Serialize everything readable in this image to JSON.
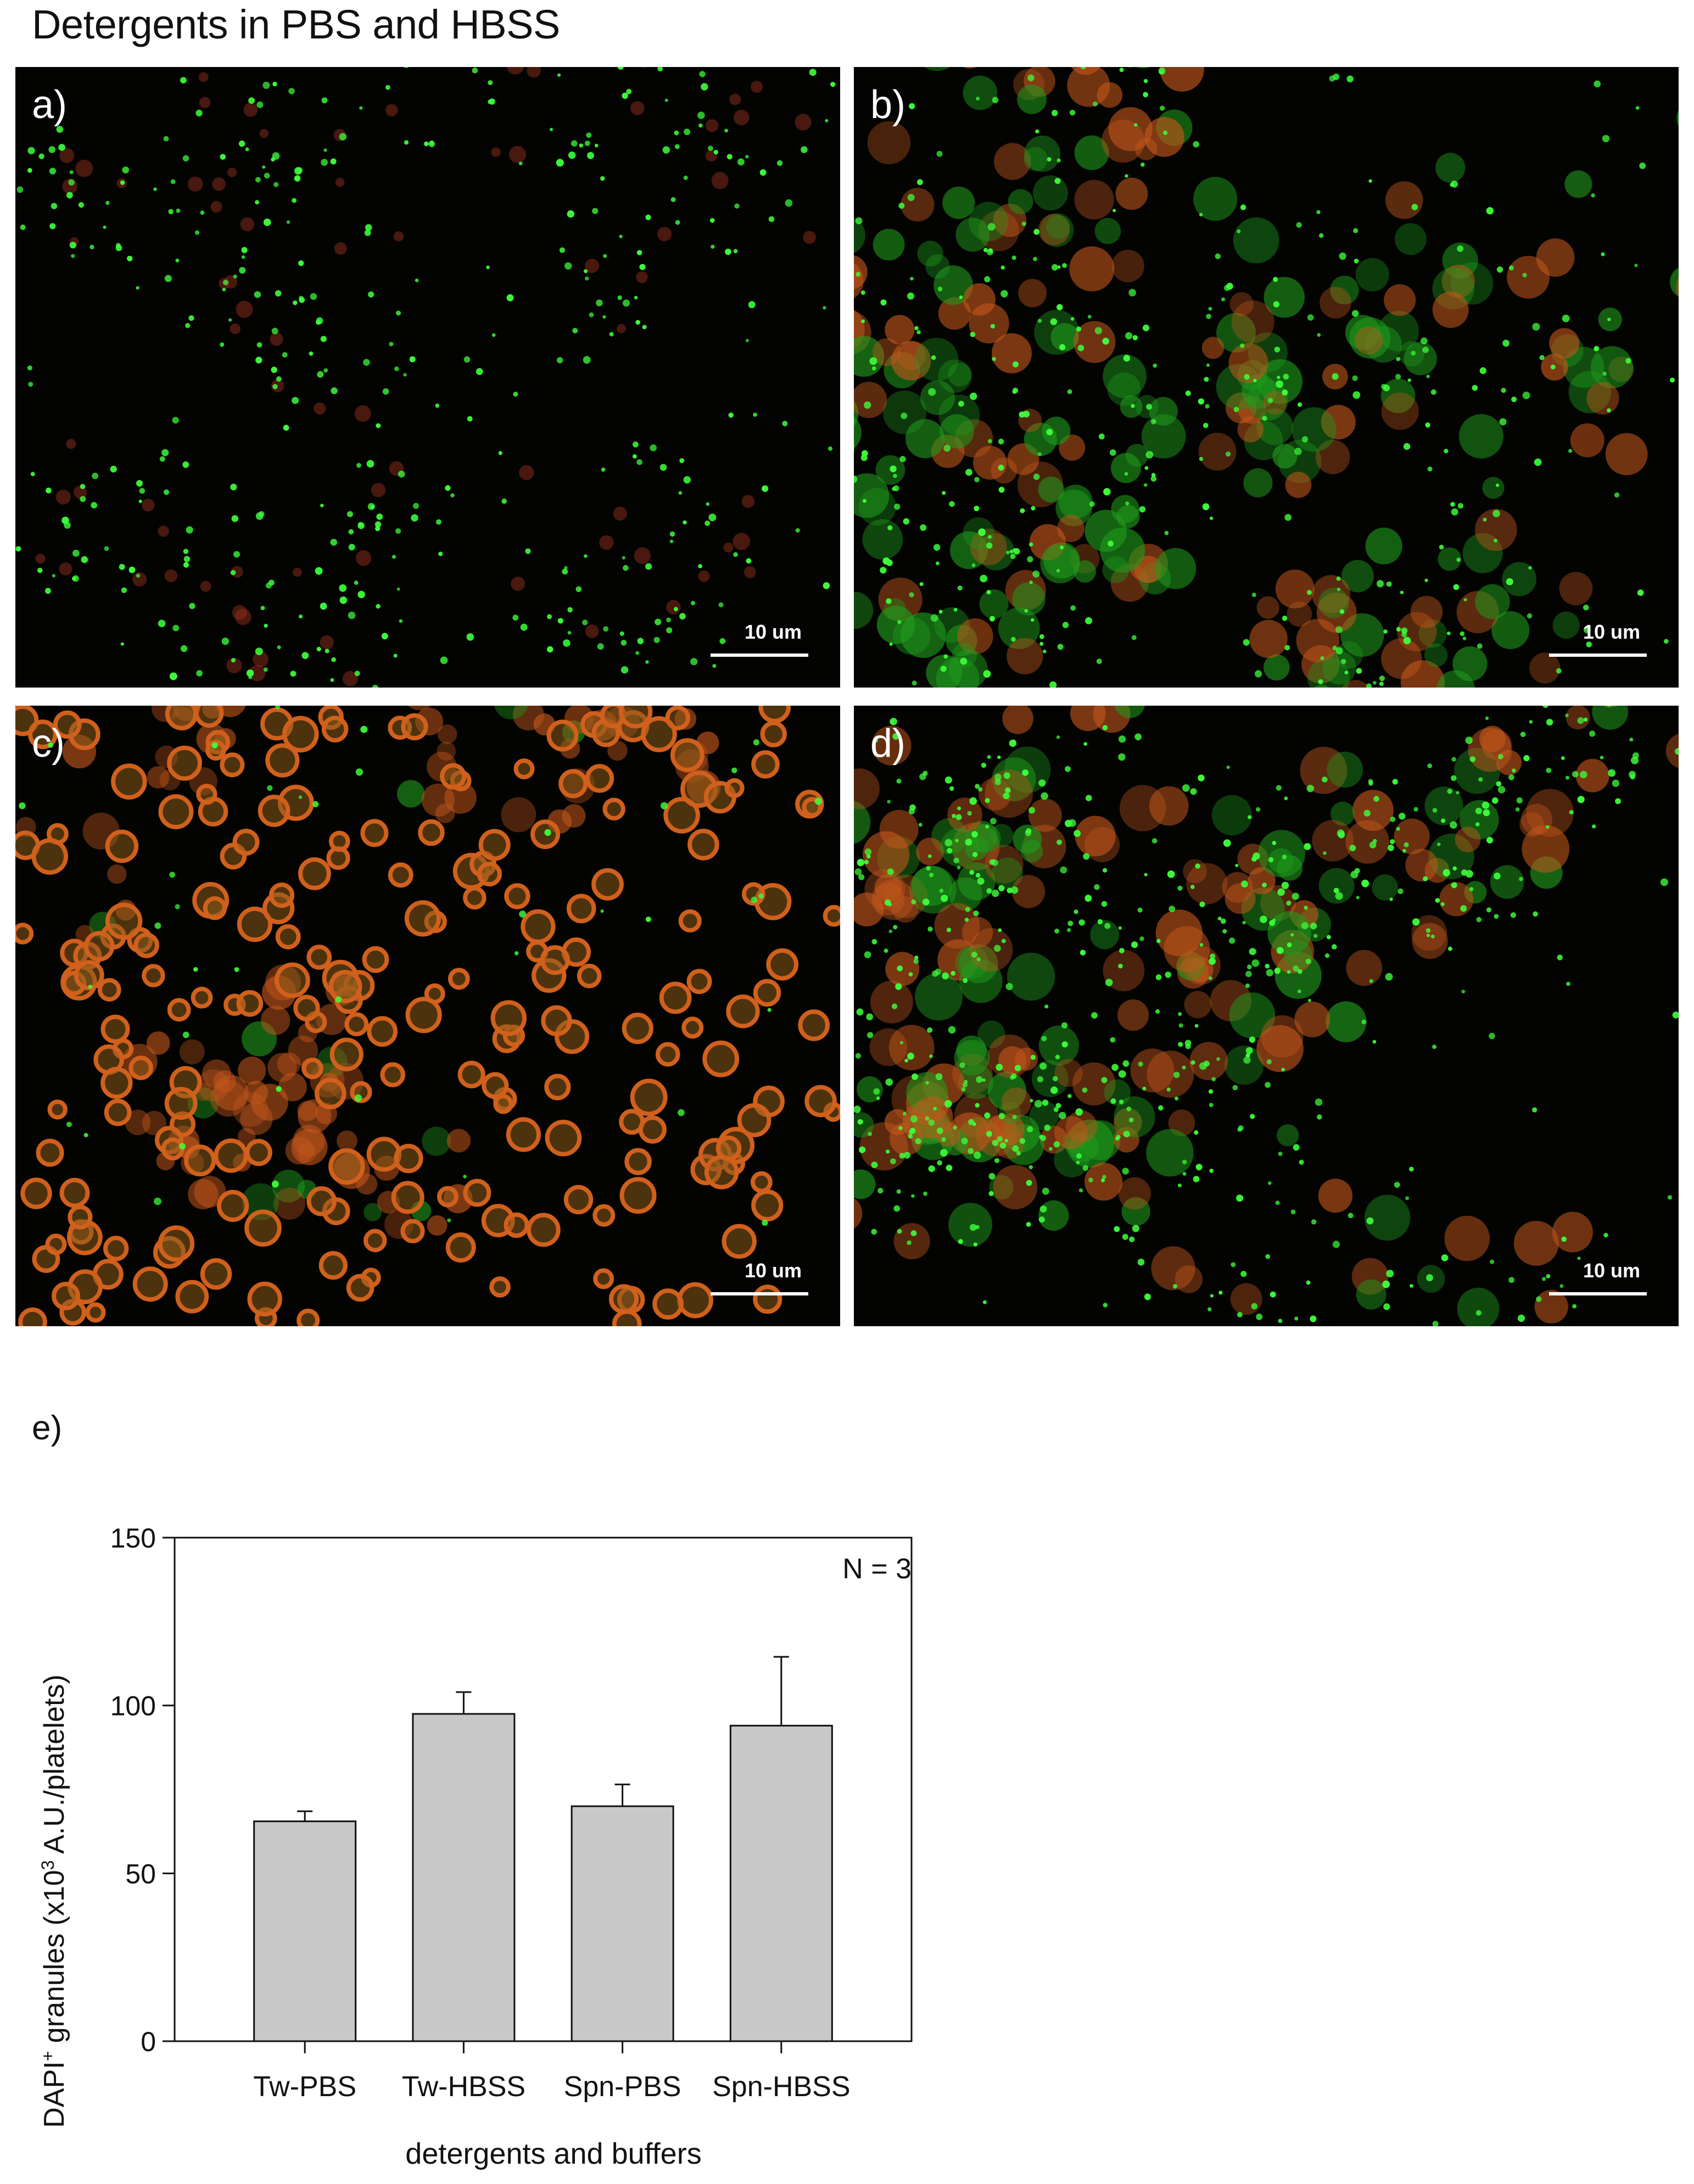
{
  "figure": {
    "title": "Detergents in PBS and HBSS",
    "colors": {
      "background": "#030402",
      "granule_green": "#3dff3a",
      "platelet_orange": "#c2561c",
      "platelet_green": "#1f9a1c"
    },
    "panels": [
      {
        "label": "a)",
        "scalebar": "10 um",
        "description_density": "sparse green granules, few red platelets"
      },
      {
        "label": "b)",
        "scalebar": "10 um",
        "description_density": "dense green clusters with orange platelets"
      },
      {
        "label": "c)",
        "scalebar": "10 um",
        "description_density": "orange ring-shaped platelets, few green granules"
      },
      {
        "label": "d)",
        "scalebar": "10 um",
        "description_density": "green granules over orange platelet aggregates"
      }
    ],
    "chart_panel_label": "e)"
  },
  "chart_data": {
    "type": "bar",
    "categories": [
      "Tw-PBS",
      "Tw-HBSS",
      "Spn-PBS",
      "Spn-HBSS"
    ],
    "values": [
      65.5,
      97.5,
      70.0,
      94.0
    ],
    "errors": [
      3.0,
      6.5,
      6.5,
      20.5
    ],
    "title": "",
    "xlabel": "detergents and buffers",
    "ylabel_prefix": "DAPI",
    "ylabel_sup1": "+",
    "ylabel_mid": " granules (x10",
    "ylabel_sup2": "3",
    "ylabel_suffix": " A.U./platelets)",
    "ylim": [
      0,
      150
    ],
    "yticks": [
      0,
      50,
      100,
      150
    ],
    "annotation": "N = 3",
    "bar_color": "#c8c8c8",
    "grid": false
  }
}
